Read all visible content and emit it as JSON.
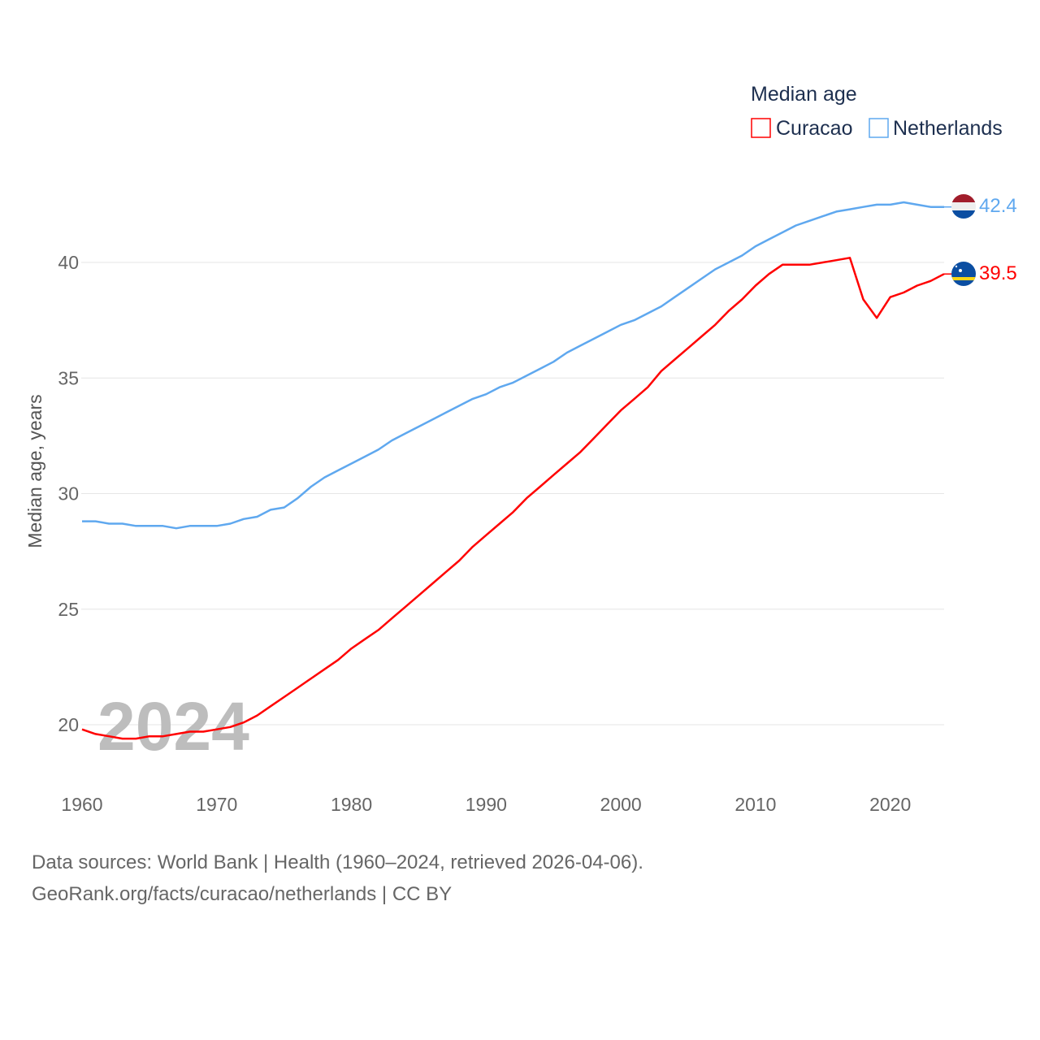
{
  "chart_data": {
    "type": "line",
    "title": "Median age",
    "ylabel": "Median age, years",
    "xlabel": "",
    "xlim": [
      1960,
      2024
    ],
    "ylim": [
      17.6,
      43.6
    ],
    "x_ticks": [
      1960,
      1970,
      1980,
      1990,
      2000,
      2010,
      2020
    ],
    "y_ticks": [
      20,
      25,
      30,
      35,
      40
    ],
    "grid": true,
    "legend_placement": "top-right",
    "current_year_label": "2024",
    "x": [
      1960,
      1961,
      1962,
      1963,
      1964,
      1965,
      1966,
      1967,
      1968,
      1969,
      1970,
      1971,
      1972,
      1973,
      1974,
      1975,
      1976,
      1977,
      1978,
      1979,
      1980,
      1981,
      1982,
      1983,
      1984,
      1985,
      1986,
      1987,
      1988,
      1989,
      1990,
      1991,
      1992,
      1993,
      1994,
      1995,
      1996,
      1997,
      1998,
      1999,
      2000,
      2001,
      2002,
      2003,
      2004,
      2005,
      2006,
      2007,
      2008,
      2009,
      2010,
      2011,
      2012,
      2013,
      2014,
      2015,
      2016,
      2017,
      2018,
      2019,
      2020,
      2021,
      2022,
      2023,
      2024
    ],
    "series": [
      {
        "name": "Curacao",
        "color": "#ff0000",
        "end_label": "39.5",
        "flag": "curacao-flag",
        "values": [
          19.8,
          19.6,
          19.5,
          19.4,
          19.4,
          19.5,
          19.5,
          19.6,
          19.7,
          19.7,
          19.8,
          19.9,
          20.1,
          20.4,
          20.8,
          21.2,
          21.6,
          22.0,
          22.4,
          22.8,
          23.3,
          23.7,
          24.1,
          24.6,
          25.1,
          25.6,
          26.1,
          26.6,
          27.1,
          27.7,
          28.2,
          28.7,
          29.2,
          29.8,
          30.3,
          30.8,
          31.3,
          31.8,
          32.4,
          33.0,
          33.6,
          34.1,
          34.6,
          35.3,
          35.8,
          36.3,
          36.8,
          37.3,
          37.9,
          38.4,
          39.0,
          39.5,
          39.9,
          39.9,
          39.9,
          40.0,
          40.1,
          40.2,
          38.4,
          37.6,
          38.5,
          38.7,
          39.0,
          39.2,
          39.5
        ]
      },
      {
        "name": "Netherlands",
        "color": "#5fa8ef",
        "end_label": "42.4",
        "flag": "netherlands-flag",
        "values": [
          28.8,
          28.8,
          28.7,
          28.7,
          28.6,
          28.6,
          28.6,
          28.5,
          28.6,
          28.6,
          28.6,
          28.7,
          28.9,
          29.0,
          29.3,
          29.4,
          29.8,
          30.3,
          30.7,
          31.0,
          31.3,
          31.6,
          31.9,
          32.3,
          32.6,
          32.9,
          33.2,
          33.5,
          33.8,
          34.1,
          34.3,
          34.6,
          34.8,
          35.1,
          35.4,
          35.7,
          36.1,
          36.4,
          36.7,
          37.0,
          37.3,
          37.5,
          37.8,
          38.1,
          38.5,
          38.9,
          39.3,
          39.7,
          40.0,
          40.3,
          40.7,
          41.0,
          41.3,
          41.6,
          41.8,
          42.0,
          42.2,
          42.3,
          42.4,
          42.5,
          42.5,
          42.6,
          42.5,
          42.4,
          42.4
        ]
      }
    ],
    "source_line1": "Data sources: World Bank | Health (1960–2024, retrieved 2026-04-06).",
    "source_line2": "GeoRank.org/facts/curacao/netherlands | CC BY"
  }
}
